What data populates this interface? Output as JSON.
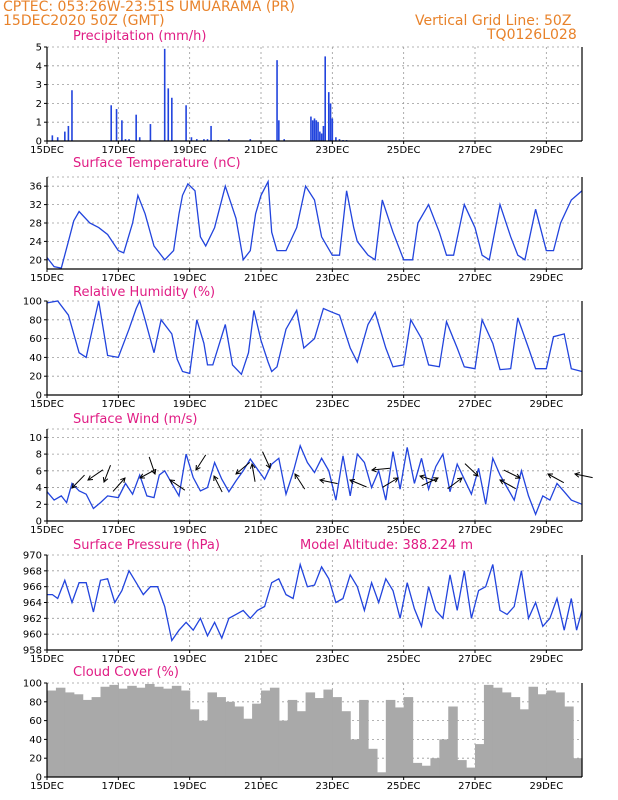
{
  "header": {
    "line1": "CPTEC:   053:26W-23:51S   UMUARAMA (PR)",
    "line2": "15DEC2020 50Z (GMT)",
    "grid_note": "Vertical Grid Line: 50Z",
    "code": "TQ0126L028"
  },
  "colors": {
    "header": "#e8822a",
    "title": "#e01c84",
    "line": "#2244dd",
    "cloud": "#a9a9a9"
  },
  "chart_data": [
    {
      "type": "bar",
      "title": "Precipitation (mm/h)",
      "xticks": [
        "15DEC",
        "17DEC",
        "19DEC",
        "21DEC",
        "23DEC",
        "25DEC",
        "27DEC",
        "29DEC"
      ],
      "xrange_days": [
        0,
        15
      ],
      "ylim": [
        0,
        5
      ],
      "yticks": [
        0,
        1,
        2,
        3,
        4,
        5
      ],
      "grid": true,
      "x": [
        0.15,
        0.3,
        0.5,
        0.6,
        0.7,
        1.8,
        1.95,
        2.1,
        2.2,
        2.3,
        2.5,
        2.6,
        2.9,
        3.3,
        3.4,
        3.5,
        3.9,
        4.05,
        4.2,
        4.4,
        4.5,
        4.6,
        4.8,
        5.1,
        5.7,
        6.45,
        6.5,
        6.65,
        7.4,
        7.45,
        7.5,
        7.55,
        7.6,
        7.65,
        7.7,
        7.75,
        7.8,
        7.9,
        7.95,
        8.0,
        8.1,
        8.2,
        8.3,
        8.4
      ],
      "y": [
        0.3,
        0.2,
        0.5,
        0.8,
        2.7,
        1.9,
        1.7,
        1.1,
        0.1,
        0.1,
        1.4,
        0.2,
        0.9,
        4.9,
        2.8,
        2.3,
        1.9,
        0.2,
        0.1,
        0.1,
        0.1,
        0.8,
        0.05,
        0.1,
        0.1,
        4.3,
        1.1,
        0.1,
        1.3,
        1.1,
        1.2,
        1.1,
        1.0,
        0.5,
        0.4,
        0.8,
        4.5,
        2.6,
        2.0,
        1.2,
        0.2,
        0.1,
        0.05,
        0.05
      ]
    },
    {
      "type": "line",
      "title": "Surface Temperature (nC)",
      "xticks": [
        "15DEC",
        "17DEC",
        "19DEC",
        "21DEC",
        "23DEC",
        "25DEC",
        "27DEC",
        "29DEC"
      ],
      "ylim": [
        18,
        38
      ],
      "yticks": [
        20,
        24,
        28,
        32,
        36
      ],
      "grid": true,
      "x": [
        0,
        0.2,
        0.4,
        0.6,
        0.75,
        0.9,
        1.2,
        1.45,
        1.7,
        2.0,
        2.15,
        2.4,
        2.55,
        2.75,
        3.0,
        3.3,
        3.55,
        3.7,
        3.8,
        3.95,
        4.15,
        4.3,
        4.45,
        4.7,
        5.0,
        5.3,
        5.5,
        5.7,
        5.85,
        6.0,
        6.2,
        6.3,
        6.45,
        6.7,
        7.0,
        7.25,
        7.5,
        7.7,
        8.0,
        8.2,
        8.4,
        8.6,
        8.7,
        9.0,
        9.2,
        9.4,
        9.7,
        10.0,
        10.25,
        10.4,
        10.7,
        11.0,
        11.2,
        11.4,
        11.7,
        12.0,
        12.2,
        12.4,
        12.7,
        13.0,
        13.2,
        13.4,
        13.7,
        14.0,
        14.2,
        14.4,
        14.7,
        15.0
      ],
      "y": [
        20.5,
        18.5,
        18.2,
        24,
        28.5,
        30.5,
        28,
        27,
        25.5,
        22,
        21.5,
        28,
        34,
        30,
        23,
        20,
        22,
        30,
        34,
        36.5,
        35,
        25,
        23,
        27,
        36,
        29,
        20,
        22,
        30,
        34,
        37,
        26,
        22,
        22,
        27,
        36,
        33,
        25,
        21,
        21,
        35,
        27,
        24,
        21,
        20,
        33,
        26,
        20,
        20,
        28,
        32,
        26,
        21,
        21,
        32,
        27,
        21,
        20,
        32,
        25,
        21,
        20,
        31,
        22,
        22,
        28,
        33,
        35
      ]
    },
    {
      "type": "line",
      "title": "Relative Humidity (%)",
      "xticks": [
        "15DEC",
        "17DEC",
        "19DEC",
        "21DEC",
        "23DEC",
        "25DEC",
        "27DEC",
        "29DEC"
      ],
      "ylim": [
        0,
        100
      ],
      "yticks": [
        0,
        20,
        40,
        60,
        80,
        100
      ],
      "grid": true,
      "x": [
        0,
        0.3,
        0.6,
        0.9,
        1.1,
        1.3,
        1.45,
        1.7,
        2.0,
        2.3,
        2.5,
        2.6,
        2.75,
        3.0,
        3.2,
        3.5,
        3.65,
        3.8,
        4.0,
        4.2,
        4.4,
        4.5,
        4.65,
        5.0,
        5.2,
        5.45,
        5.65,
        5.8,
        6.0,
        6.2,
        6.3,
        6.45,
        6.7,
        7.0,
        7.2,
        7.5,
        7.75,
        8.0,
        8.2,
        8.5,
        8.7,
        9.0,
        9.2,
        9.5,
        9.7,
        10.0,
        10.2,
        10.5,
        10.7,
        11.0,
        11.2,
        11.5,
        11.7,
        12.0,
        12.2,
        12.5,
        12.7,
        13.0,
        13.2,
        13.5,
        13.7,
        14.0,
        14.2,
        14.5,
        14.7,
        15.0
      ],
      "y": [
        98,
        100,
        85,
        45,
        40,
        75,
        100,
        42,
        40,
        70,
        92,
        100,
        80,
        45,
        80,
        65,
        38,
        25,
        23,
        80,
        55,
        32,
        32,
        75,
        32,
        22,
        45,
        90,
        58,
        35,
        25,
        30,
        70,
        90,
        50,
        60,
        92,
        88,
        85,
        50,
        35,
        75,
        88,
        50,
        30,
        32,
        80,
        60,
        32,
        30,
        78,
        50,
        30,
        28,
        80,
        55,
        27,
        28,
        82,
        50,
        28,
        28,
        62,
        65,
        28,
        25
      ]
    },
    {
      "type": "line",
      "title": "Surface Wind (m/s)",
      "xticks": [
        "15DEC",
        "17DEC",
        "19DEC",
        "21DEC",
        "23DEC",
        "25DEC",
        "27DEC",
        "29DEC"
      ],
      "ylim": [
        0,
        11
      ],
      "yticks": [
        0,
        2,
        4,
        6,
        8,
        10
      ],
      "grid": true,
      "x": [
        0,
        0.2,
        0.4,
        0.55,
        0.7,
        0.9,
        1.1,
        1.3,
        1.5,
        1.7,
        2.0,
        2.2,
        2.4,
        2.6,
        2.8,
        3.0,
        3.15,
        3.3,
        3.5,
        3.7,
        3.9,
        4.1,
        4.3,
        4.5,
        4.7,
        4.9,
        5.1,
        5.3,
        5.5,
        5.7,
        5.9,
        6.1,
        6.3,
        6.5,
        6.7,
        6.9,
        7.1,
        7.3,
        7.5,
        7.7,
        7.9,
        8.1,
        8.3,
        8.5,
        8.7,
        8.9,
        9.1,
        9.3,
        9.5,
        9.7,
        9.9,
        10.1,
        10.3,
        10.5,
        10.7,
        10.9,
        11.1,
        11.3,
        11.5,
        11.7,
        11.9,
        12.1,
        12.3,
        12.5,
        12.7,
        12.9,
        13.1,
        13.3,
        13.5,
        13.7,
        13.9,
        14.1,
        14.3,
        14.5,
        14.7,
        15.0
      ],
      "y": [
        3.5,
        2.5,
        3.0,
        2.2,
        4.5,
        3.6,
        3.2,
        1.5,
        2.2,
        3.0,
        2.8,
        4.5,
        3.2,
        5.5,
        3.0,
        2.8,
        5.5,
        6.0,
        4.5,
        3.0,
        8.0,
        5.2,
        3.6,
        4.0,
        7.0,
        5.0,
        3.5,
        4.8,
        6.0,
        7.4,
        6.2,
        5.0,
        6.8,
        7.5,
        3.2,
        5.8,
        9.0,
        7.0,
        5.8,
        7.5,
        6.0,
        2.5,
        7.8,
        3.0,
        8.0,
        7.0,
        4.0,
        6.0,
        2.5,
        8.3,
        3.8,
        8.8,
        4.5,
        7.5,
        3.8,
        6.5,
        8.0,
        3.5,
        6.8,
        5.0,
        3.2,
        6.3,
        2.0,
        7.5,
        5.5,
        4.0,
        2.5,
        6.0,
        3.0,
        0.8,
        3.0,
        2.5,
        4.5,
        3.5,
        2.5,
        2.0
      ]
    },
    {
      "type": "line",
      "title": "Surface Pressure (hPa)",
      "annotation": "Model Altitude: 388.224 m",
      "xticks": [
        "15DEC",
        "17DEC",
        "19DEC",
        "21DEC",
        "23DEC",
        "25DEC",
        "27DEC",
        "29DEC"
      ],
      "ylim": [
        958,
        970
      ],
      "yticks": [
        958,
        960,
        962,
        964,
        966,
        968,
        970
      ],
      "grid": true,
      "x": [
        0,
        0.15,
        0.3,
        0.5,
        0.7,
        0.9,
        1.1,
        1.3,
        1.5,
        1.7,
        1.9,
        2.1,
        2.3,
        2.5,
        2.7,
        2.9,
        3.1,
        3.3,
        3.5,
        3.7,
        3.9,
        4.1,
        4.3,
        4.5,
        4.7,
        4.9,
        5.1,
        5.3,
        5.5,
        5.7,
        5.9,
        6.1,
        6.3,
        6.5,
        6.7,
        6.9,
        7.1,
        7.3,
        7.5,
        7.7,
        7.9,
        8.1,
        8.3,
        8.5,
        8.7,
        8.9,
        9.1,
        9.3,
        9.5,
        9.7,
        9.9,
        10.1,
        10.3,
        10.5,
        10.7,
        10.9,
        11.1,
        11.3,
        11.5,
        11.7,
        11.9,
        12.1,
        12.3,
        12.5,
        12.7,
        12.9,
        13.1,
        13.3,
        13.5,
        13.7,
        13.9,
        14.1,
        14.3,
        14.5,
        14.7,
        14.85,
        15.0
      ],
      "y": [
        965,
        965,
        964.5,
        966.8,
        964,
        966.5,
        966.5,
        962.8,
        966.8,
        967,
        964,
        965.5,
        968,
        966.5,
        965,
        966,
        966,
        963.5,
        959.2,
        960.5,
        961.5,
        960.5,
        962,
        959.8,
        961.5,
        959.5,
        962,
        962.5,
        963,
        962,
        963,
        963.5,
        966.5,
        967,
        965,
        964.5,
        968.8,
        966,
        966.2,
        968.5,
        967,
        964,
        964.5,
        967.5,
        966,
        963,
        966.5,
        964,
        967,
        965.5,
        962,
        966.5,
        963.2,
        961,
        966,
        963,
        962,
        967.5,
        963,
        968,
        962,
        965.5,
        966,
        968.8,
        963,
        962.5,
        963.5,
        968,
        962,
        964,
        961,
        962,
        964.5,
        960.5,
        964.5,
        960.5,
        963
      ]
    },
    {
      "type": "bar",
      "title": "Cloud Cover (%)",
      "xticks": [
        "15DEC",
        "17DEC",
        "19DEC",
        "21DEC",
        "23DEC",
        "25DEC",
        "27DEC",
        "29DEC"
      ],
      "ylim": [
        0,
        100
      ],
      "yticks": [
        0,
        20,
        40,
        60,
        80,
        100
      ],
      "grid": true,
      "x": [
        0.0,
        0.25,
        0.5,
        0.75,
        1.0,
        1.25,
        1.5,
        1.75,
        2.0,
        2.25,
        2.5,
        2.75,
        3.0,
        3.25,
        3.5,
        3.75,
        4.0,
        4.25,
        4.5,
        4.75,
        5.0,
        5.25,
        5.5,
        5.75,
        6.0,
        6.25,
        6.5,
        6.75,
        7.0,
        7.25,
        7.5,
        7.75,
        8.0,
        8.25,
        8.5,
        8.75,
        9.0,
        9.25,
        9.5,
        9.75,
        10.0,
        10.25,
        10.5,
        10.75,
        11.0,
        11.25,
        11.5,
        11.75,
        12.0,
        12.25,
        12.5,
        12.75,
        13.0,
        13.25,
        13.5,
        13.75,
        14.0,
        14.25,
        14.5,
        14.75
      ],
      "y": [
        92,
        95,
        90,
        88,
        82,
        85,
        96,
        98,
        94,
        97,
        95,
        99,
        96,
        94,
        97,
        92,
        72,
        60,
        90,
        85,
        80,
        75,
        62,
        78,
        92,
        95,
        60,
        82,
        70,
        90,
        84,
        93,
        85,
        70,
        40,
        82,
        30,
        5,
        82,
        74,
        85,
        15,
        12,
        20,
        40,
        75,
        18,
        10,
        35,
        98,
        95,
        90,
        85,
        72,
        96,
        88,
        92,
        90,
        75,
        20
      ]
    }
  ]
}
